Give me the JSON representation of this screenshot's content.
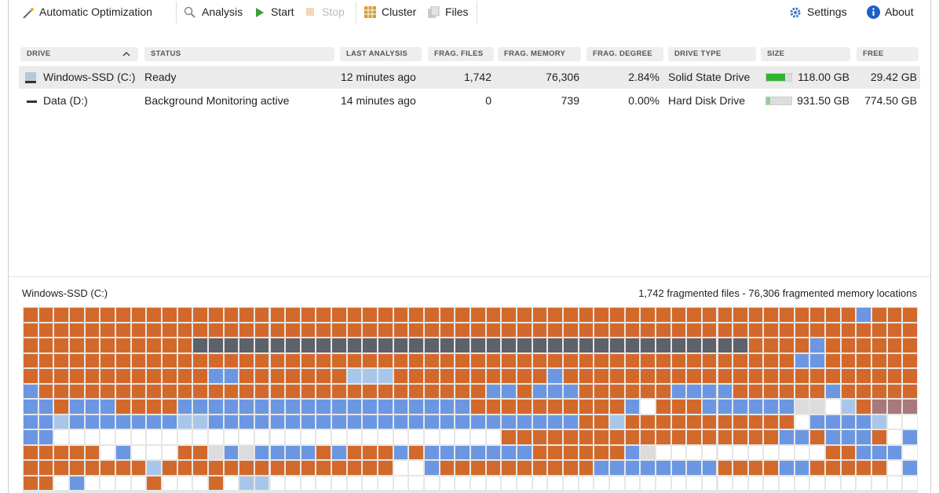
{
  "toolbar": {
    "auto_optimization": "Automatic Optimization",
    "analysis": "Analysis",
    "start": "Start",
    "stop": "Stop",
    "cluster": "Cluster",
    "files": "Files",
    "settings": "Settings",
    "about": "About"
  },
  "table": {
    "columns": [
      "DRIVE",
      "STATUS",
      "LAST ANALYSIS",
      "FRAG. FILES",
      "FRAG. MEMORY",
      "FRAG. DEGREE",
      "DRIVE TYPE",
      "SIZE",
      "FREE"
    ],
    "rows": [
      [
        "Windows-SSD (C:)",
        "Ready",
        "12 minutes ago",
        "1,742",
        "76,306",
        "2.84%",
        "Solid State Drive",
        "118.00 GB",
        "29.42 GB"
      ],
      [
        "Data (D:)",
        "Background Monitoring active",
        "14 minutes ago",
        "0",
        "739",
        "0.00%",
        "Hard Disk Drive",
        "931.50 GB",
        "774.50 GB"
      ]
    ]
  },
  "map_panel": {
    "drive": "Windows-SSD (C:)",
    "summary": "1,742 fragmented files - 76,306 fragmented memory locations"
  }
}
